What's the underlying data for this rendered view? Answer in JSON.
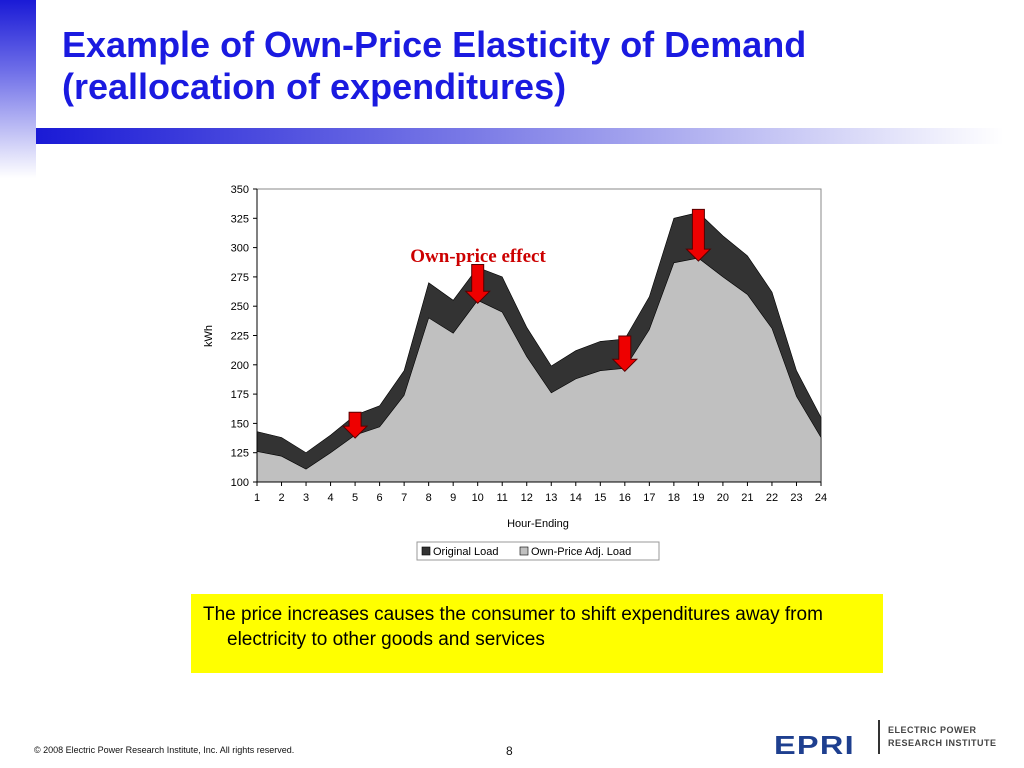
{
  "slide": {
    "title_line1": "Example of Own-Price Elasticity of Demand",
    "title_line2": "(reallocation of expenditures)",
    "callout_text": "The price increases causes the consumer to shift expenditures away from electricity to other goods and services",
    "footer_copyright": "© 2008 Electric Power Research Institute, Inc. All rights reserved.",
    "page_number": "8",
    "logo_mark": "EPRI",
    "logo_line1": "ELECTRIC POWER",
    "logo_line2": "RESEARCH INSTITUTE"
  },
  "colors": {
    "title": "#1a1ae0",
    "original_load": "#333333",
    "adjusted_load": "#c0c0c0",
    "arrow": "#ee0000",
    "annotation": "#cc0000",
    "callout_bg": "#ffff00"
  },
  "chart_data": {
    "type": "area",
    "title": "",
    "xlabel": "Hour-Ending",
    "ylabel": "kWh",
    "ylim": [
      100,
      350
    ],
    "yticks": [
      100,
      125,
      150,
      175,
      200,
      225,
      250,
      275,
      300,
      325,
      350
    ],
    "categories": [
      "1",
      "2",
      "3",
      "4",
      "5",
      "6",
      "7",
      "8",
      "9",
      "10",
      "11",
      "12",
      "13",
      "14",
      "15",
      "16",
      "17",
      "18",
      "19",
      "20",
      "21",
      "22",
      "23",
      "24"
    ],
    "series": [
      {
        "name": "Original Load",
        "values": [
          143,
          138,
          125,
          140,
          157,
          165,
          195,
          270,
          255,
          283,
          275,
          232,
          199,
          212,
          220,
          222,
          258,
          325,
          330,
          310,
          293,
          262,
          195,
          155
        ]
      },
      {
        "name": "Own-Price Adj. Load",
        "values": [
          126,
          122,
          111,
          125,
          140,
          147,
          174,
          240,
          227,
          255,
          245,
          207,
          176,
          188,
          195,
          197,
          230,
          287,
          291,
          275,
          260,
          231,
          173,
          138
        ]
      }
    ],
    "annotation": "Own-price effect",
    "arrow_hours": [
      5,
      10,
      16,
      19
    ],
    "grid": false,
    "legend": "bottom"
  }
}
